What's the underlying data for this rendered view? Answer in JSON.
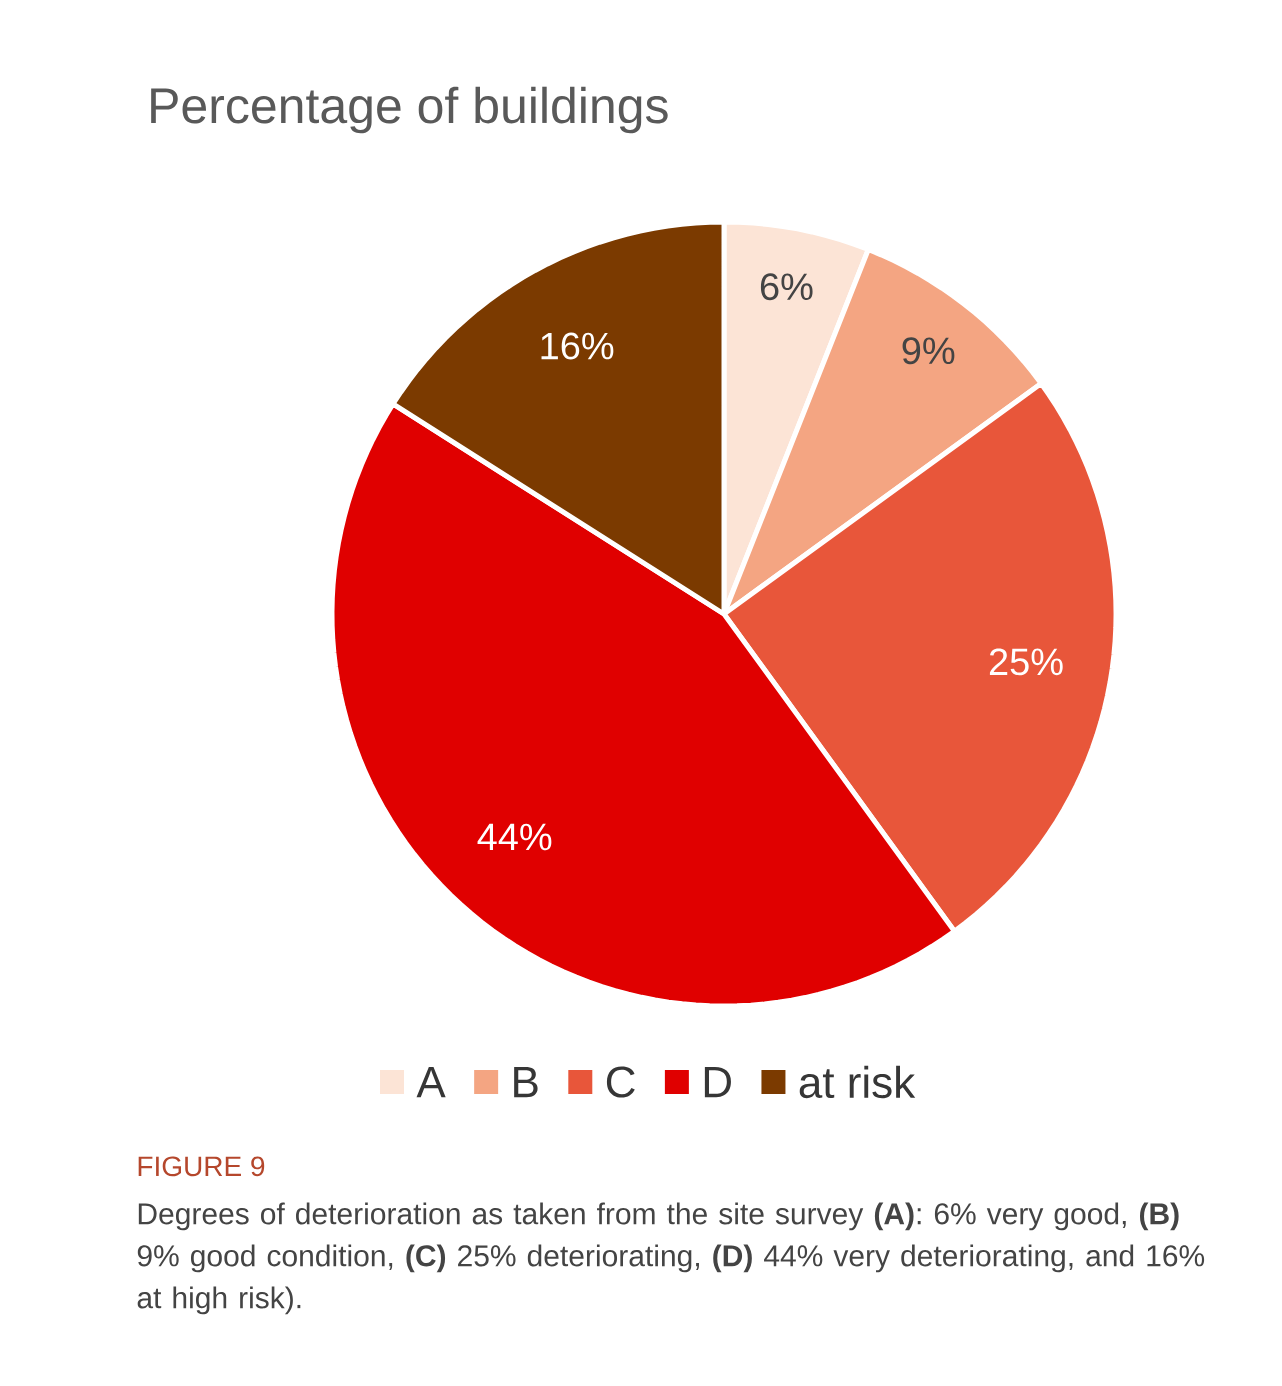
{
  "chart_data": {
    "type": "pie",
    "title": "Percentage of buildings",
    "categories": [
      "A",
      "B",
      "C",
      "D",
      "at risk"
    ],
    "values": [
      6,
      9,
      25,
      44,
      16
    ],
    "value_labels": [
      "6%",
      "9%",
      "25%",
      "44%",
      "16%"
    ],
    "colors": [
      "#fce4d6",
      "#f4a582",
      "#e8563a",
      "#e00000",
      "#7b3a00"
    ],
    "legend": "bottom",
    "annotations": [
      "FIGURE 9",
      "Degrees of deterioration as taken from the site survey **(A)**: 6% very good, **(B)** 9% good condition, **(C)** 25% deteriorating, **(D)** 44% very deteriorating, and 16% at high risk)."
    ]
  }
}
